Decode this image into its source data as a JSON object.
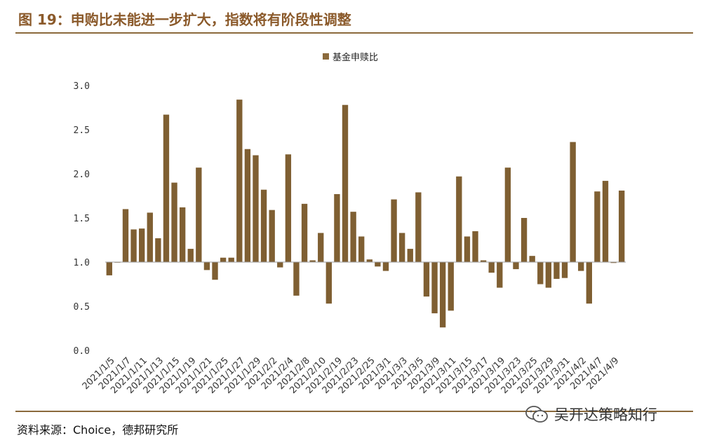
{
  "header": {
    "title": "图 19：申购比未能进一步扩大，指数将有阶段性调整"
  },
  "footer": {
    "source": "资料来源：Choice，德邦研究所",
    "watermark": "吴开达策略知行"
  },
  "colors": {
    "accent": "#8B6A3C",
    "bar": "#7F5F32",
    "text": "#222222"
  },
  "chart_data": {
    "type": "bar",
    "title": "",
    "legend": [
      "基金申赎比"
    ],
    "legend_position": "top-center",
    "baseline": 1.0,
    "ylim": [
      0,
      3
    ],
    "yticks": [
      "0.0",
      "0.5",
      "1.0",
      "1.5",
      "2.0",
      "2.5",
      "3.0"
    ],
    "xlabels": [
      "2021/1/5",
      "2021/1/7",
      "2021/1/11",
      "2021/1/13",
      "2021/1/15",
      "2021/1/19",
      "2021/1/21",
      "2021/1/25",
      "2021/1/27",
      "2021/1/29",
      "2021/2/2",
      "2021/2/4",
      "2021/2/8",
      "2021/2/10",
      "2021/2/19",
      "2021/2/23",
      "2021/2/25",
      "2021/3/1",
      "2021/3/3",
      "2021/3/5",
      "2021/3/9",
      "2021/3/11",
      "2021/3/15",
      "2021/3/17",
      "2021/3/19",
      "2021/3/23",
      "2021/3/25",
      "2021/3/29",
      "2021/3/31",
      "2021/4/2",
      "2021/4/7",
      "2021/4/9"
    ],
    "values": [
      0.85,
      1.0,
      1.6,
      1.37,
      1.38,
      1.56,
      1.27,
      2.67,
      1.9,
      1.62,
      1.15,
      2.07,
      0.91,
      0.8,
      1.05,
      1.05,
      2.84,
      2.28,
      2.21,
      1.82,
      1.59,
      0.94,
      2.22,
      0.62,
      1.66,
      1.02,
      1.33,
      0.53,
      1.77,
      2.78,
      1.57,
      1.29,
      1.03,
      0.95,
      0.9,
      1.71,
      1.33,
      1.15,
      1.79,
      0.61,
      0.42,
      0.26,
      0.45,
      1.97,
      1.29,
      1.35,
      1.02,
      0.88,
      0.71,
      2.07,
      0.92,
      1.5,
      1.07,
      0.75,
      0.71,
      0.81,
      0.82,
      2.36,
      0.9,
      0.53,
      1.8,
      1.92,
      0.99,
      1.81
    ]
  }
}
